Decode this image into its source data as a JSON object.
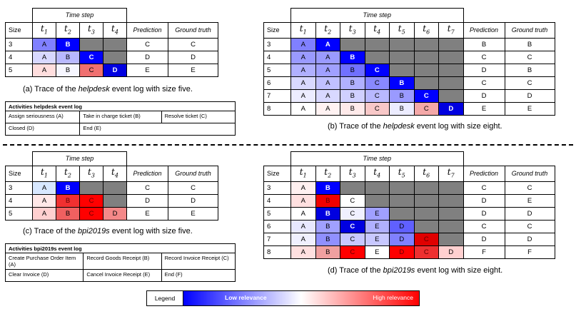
{
  "legend": {
    "label": "Legend",
    "low": "Low relevance",
    "high": "High relevance"
  },
  "traces": [
    {
      "timestep_label": "Time step",
      "size_label": "Size",
      "prediction_label": "Prediction",
      "ground_truth_label": "Ground truth",
      "t_labels": [
        "t1",
        "t2",
        "t3",
        "t4"
      ],
      "rows": [
        {
          "size": "3",
          "cells": [
            {
              "t": "A",
              "c": "#8080ff"
            },
            {
              "t": "B",
              "c": "#0000ff"
            },
            {
              "t": "",
              "c": "#808080"
            },
            {
              "t": "",
              "c": "#808080"
            }
          ],
          "prediction": "C",
          "truth": "C"
        },
        {
          "size": "4",
          "cells": [
            {
              "t": "A",
              "c": "#d8d8ff"
            },
            {
              "t": "B",
              "c": "#b8b8ff"
            },
            {
              "t": "C",
              "c": "#0000ff"
            },
            {
              "t": "",
              "c": "#808080"
            }
          ],
          "prediction": "D",
          "truth": "D"
        },
        {
          "size": "5",
          "cells": [
            {
              "t": "A",
              "c": "#ffdede"
            },
            {
              "t": "B",
              "c": "#f6f6ff"
            },
            {
              "t": "C",
              "c": "#f07070"
            },
            {
              "t": "D",
              "c": "#0000e0"
            }
          ],
          "prediction": "E",
          "truth": "E"
        }
      ],
      "caption_before": "(a) Trace of the ",
      "caption_log": "helpdesk",
      "caption_after": " event log with size five."
    },
    {
      "timestep_label": "Time step",
      "size_label": "Size",
      "prediction_label": "Prediction",
      "ground_truth_label": "Ground truth",
      "t_labels": [
        "t1",
        "t2",
        "t3",
        "t4",
        "t5",
        "t6",
        "t7"
      ],
      "rows": [
        {
          "size": "3",
          "cells": [
            {
              "t": "A",
              "c": "#8080ff"
            },
            {
              "t": "A",
              "c": "#0000ff"
            },
            {
              "t": "",
              "c": "#808080"
            },
            {
              "t": "",
              "c": "#808080"
            },
            {
              "t": "",
              "c": "#808080"
            },
            {
              "t": "",
              "c": "#808080"
            },
            {
              "t": "",
              "c": "#808080"
            }
          ],
          "prediction": "B",
          "truth": "B"
        },
        {
          "size": "4",
          "cells": [
            {
              "t": "A",
              "c": "#9a9aff"
            },
            {
              "t": "A",
              "c": "#9a9aff"
            },
            {
              "t": "B",
              "c": "#0000ff"
            },
            {
              "t": "",
              "c": "#808080"
            },
            {
              "t": "",
              "c": "#808080"
            },
            {
              "t": "",
              "c": "#808080"
            },
            {
              "t": "",
              "c": "#808080"
            }
          ],
          "prediction": "C",
          "truth": "C"
        },
        {
          "size": "5",
          "cells": [
            {
              "t": "A",
              "c": "#b0b0ff"
            },
            {
              "t": "A",
              "c": "#a0a0ff"
            },
            {
              "t": "B",
              "c": "#7070ff"
            },
            {
              "t": "C",
              "c": "#0000ff"
            },
            {
              "t": "",
              "c": "#808080"
            },
            {
              "t": "",
              "c": "#808080"
            },
            {
              "t": "",
              "c": "#808080"
            }
          ],
          "prediction": "D",
          "truth": "B"
        },
        {
          "size": "6",
          "cells": [
            {
              "t": "A",
              "c": "#d8d8ff"
            },
            {
              "t": "A",
              "c": "#c0c0ff"
            },
            {
              "t": "B",
              "c": "#b0b0ff"
            },
            {
              "t": "C",
              "c": "#8888ff"
            },
            {
              "t": "B",
              "c": "#0000ff"
            },
            {
              "t": "",
              "c": "#808080"
            },
            {
              "t": "",
              "c": "#808080"
            }
          ],
          "prediction": "C",
          "truth": "C"
        },
        {
          "size": "7",
          "cells": [
            {
              "t": "A",
              "c": "#ececff"
            },
            {
              "t": "A",
              "c": "#d8d8ff"
            },
            {
              "t": "B",
              "c": "#d0d0ff"
            },
            {
              "t": "C",
              "c": "#b8b8ff"
            },
            {
              "t": "B",
              "c": "#9a9aff"
            },
            {
              "t": "C",
              "c": "#0000ff"
            },
            {
              "t": "",
              "c": "#808080"
            }
          ],
          "prediction": "D",
          "truth": "D"
        },
        {
          "size": "8",
          "cells": [
            {
              "t": "A",
              "c": "#ffffff"
            },
            {
              "t": "A",
              "c": "#fff2f2"
            },
            {
              "t": "B",
              "c": "#ffeaea"
            },
            {
              "t": "C",
              "c": "#f8c8c8"
            },
            {
              "t": "B",
              "c": "#ececff"
            },
            {
              "t": "C",
              "c": "#f4a8a8"
            },
            {
              "t": "D",
              "c": "#0000e0"
            }
          ],
          "prediction": "E",
          "truth": "E"
        }
      ],
      "caption_before": "(b) Trace of the ",
      "caption_log": "helpdesk",
      "caption_after": " event log with size eight."
    },
    {
      "timestep_label": "Time step",
      "size_label": "Size",
      "prediction_label": "Prediction",
      "ground_truth_label": "Ground truth",
      "t_labels": [
        "t1",
        "t2",
        "t3",
        "t4"
      ],
      "rows": [
        {
          "size": "3",
          "cells": [
            {
              "t": "A",
              "c": "#d8e8ff"
            },
            {
              "t": "B",
              "c": "#0000ff"
            },
            {
              "t": "",
              "c": "#808080"
            },
            {
              "t": "",
              "c": "#808080"
            }
          ],
          "prediction": "C",
          "truth": "C"
        },
        {
          "size": "4",
          "cells": [
            {
              "t": "A",
              "c": "#ffe8e8"
            },
            {
              "t": "B",
              "c": "#f03030"
            },
            {
              "t": "C",
              "c": "#ff0000"
            },
            {
              "t": "",
              "c": "#808080"
            }
          ],
          "prediction": "D",
          "truth": "D"
        },
        {
          "size": "5",
          "cells": [
            {
              "t": "A",
              "c": "#ffd0d0"
            },
            {
              "t": "B",
              "c": "#f06060"
            },
            {
              "t": "C",
              "c": "#ff0000"
            },
            {
              "t": "D",
              "c": "#f48888"
            }
          ],
          "prediction": "E",
          "truth": "E"
        }
      ],
      "caption_before": "(c) Trace of the ",
      "caption_log": "bpi2019s",
      "caption_after": " event log with size five."
    },
    {
      "timestep_label": "Time step",
      "size_label": "Size",
      "prediction_label": "Prediction",
      "ground_truth_label": "Ground truth",
      "t_labels": [
        "t1",
        "t2",
        "t3",
        "t4",
        "t5",
        "t6",
        "t7"
      ],
      "rows": [
        {
          "size": "3",
          "cells": [
            {
              "t": "A",
              "c": "#fff0f0"
            },
            {
              "t": "B",
              "c": "#0000ff"
            },
            {
              "t": "",
              "c": "#808080"
            },
            {
              "t": "",
              "c": "#808080"
            },
            {
              "t": "",
              "c": "#808080"
            },
            {
              "t": "",
              "c": "#808080"
            },
            {
              "t": "",
              "c": "#808080"
            }
          ],
          "prediction": "C",
          "truth": "C"
        },
        {
          "size": "4",
          "cells": [
            {
              "t": "A",
              "c": "#ffe0e0"
            },
            {
              "t": "B",
              "c": "#f00000"
            },
            {
              "t": "C",
              "c": "#ffffff"
            },
            {
              "t": "",
              "c": "#808080"
            },
            {
              "t": "",
              "c": "#808080"
            },
            {
              "t": "",
              "c": "#808080"
            },
            {
              "t": "",
              "c": "#808080"
            }
          ],
          "prediction": "D",
          "truth": "E"
        },
        {
          "size": "5",
          "cells": [
            {
              "t": "A",
              "c": "#ffffff"
            },
            {
              "t": "B",
              "c": "#0000e0"
            },
            {
              "t": "C",
              "c": "#f0f0ff"
            },
            {
              "t": "E",
              "c": "#a0a0ff"
            },
            {
              "t": "",
              "c": "#808080"
            },
            {
              "t": "",
              "c": "#808080"
            },
            {
              "t": "",
              "c": "#808080"
            }
          ],
          "prediction": "D",
          "truth": "D"
        },
        {
          "size": "6",
          "cells": [
            {
              "t": "A",
              "c": "#e8e8ff"
            },
            {
              "t": "B",
              "c": "#a0a0ff"
            },
            {
              "t": "C",
              "c": "#0000e0"
            },
            {
              "t": "E",
              "c": "#b0b0ff"
            },
            {
              "t": "D",
              "c": "#6060ff"
            },
            {
              "t": "",
              "c": "#808080"
            },
            {
              "t": "",
              "c": "#808080"
            }
          ],
          "prediction": "C",
          "truth": "C"
        },
        {
          "size": "7",
          "cells": [
            {
              "t": "A",
              "c": "#f0f0ff"
            },
            {
              "t": "B",
              "c": "#9090ff"
            },
            {
              "t": "C",
              "c": "#c8c8ff"
            },
            {
              "t": "E",
              "c": "#c8c8ff"
            },
            {
              "t": "D",
              "c": "#8080ff"
            },
            {
              "t": "C",
              "c": "#e00000"
            },
            {
              "t": "",
              "c": "#808080"
            }
          ],
          "prediction": "D",
          "truth": "D"
        },
        {
          "size": "8",
          "cells": [
            {
              "t": "A",
              "c": "#ffe0e0"
            },
            {
              "t": "B",
              "c": "#f0a0a0"
            },
            {
              "t": "C",
              "c": "#ff0000"
            },
            {
              "t": "E",
              "c": "#ffffff"
            },
            {
              "t": "D",
              "c": "#ff0000"
            },
            {
              "t": "C",
              "c": "#ee3030"
            },
            {
              "t": "D",
              "c": "#ffd0d0"
            }
          ],
          "prediction": "F",
          "truth": "F"
        }
      ],
      "caption_before": "(d) Trace of the ",
      "caption_log": "bpi2019s",
      "caption_after": " event log with size eight."
    }
  ],
  "activities": [
    {
      "title": "Activities helpdesk event log",
      "rows": [
        [
          "Assign seriousness (A)",
          "Take in charge ticket (B)",
          "Resolve ticket (C)"
        ],
        [
          "Closed (D)",
          "End (E)"
        ]
      ]
    },
    {
      "title": "Activities bpi2019s event log",
      "rows": [
        [
          "Create Purchase Order Item (A)",
          "Record Goods Receipt (B)",
          "Record Invoice Receipt (C)"
        ],
        [
          "Clear Invoice (D)",
          "Cancel Invoice Receipt (E)",
          "End (F)"
        ]
      ]
    }
  ]
}
